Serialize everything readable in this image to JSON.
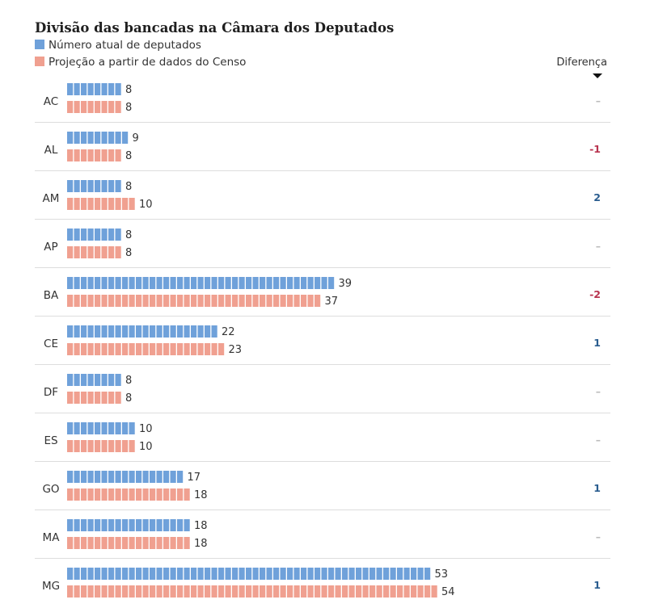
{
  "colors": {
    "current": "#6fa1da",
    "projection": "#f0a090",
    "divider": "#dddddd",
    "diff_positive": "#2a5d8f",
    "diff_negative": "#b8344f",
    "diff_zero": "#bbbbbb"
  },
  "chart_data": {
    "type": "bar",
    "title": "Divisão das bancadas na Câmara dos Deputados",
    "legend": [
      "Número atual de deputados",
      "Projeção a partir de dados do Censo"
    ],
    "difference_header": "Diferença",
    "categories": [
      "AC",
      "AL",
      "AM",
      "AP",
      "BA",
      "CE",
      "DF",
      "ES",
      "GO",
      "MA",
      "MG"
    ],
    "series": [
      {
        "name": "Número atual de deputados",
        "values": [
          8,
          9,
          8,
          8,
          39,
          22,
          8,
          10,
          17,
          18,
          53
        ]
      },
      {
        "name": "Projeção a partir de dados do Censo",
        "values": [
          8,
          8,
          10,
          8,
          37,
          23,
          8,
          10,
          18,
          18,
          54
        ]
      }
    ],
    "difference": [
      "–",
      "-1",
      "2",
      "–",
      "-2",
      "1",
      "–",
      "–",
      "1",
      "–",
      "1"
    ]
  }
}
